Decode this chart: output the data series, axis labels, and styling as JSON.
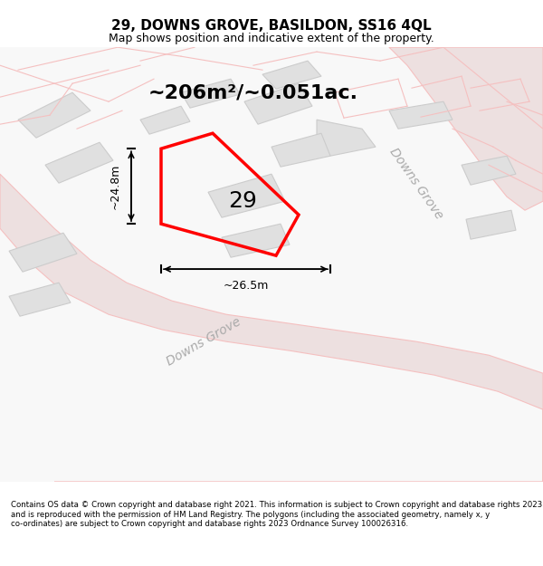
{
  "title": "29, DOWNS GROVE, BASILDON, SS16 4QL",
  "subtitle": "Map shows position and indicative extent of the property.",
  "area_text": "~206m²/~0.051ac.",
  "label_29": "29",
  "dim_height": "~24.8m",
  "dim_width": "~26.5m",
  "street_label1": "Downs Grove",
  "street_label2": "Downs Grove",
  "footer": "Contains OS data © Crown copyright and database right 2021. This information is subject to Crown copyright and database rights 2023 and is reproduced with the permission of HM Land Registry. The polygons (including the associated geometry, namely x, y co-ordinates) are subject to Crown copyright and database rights 2023 Ordnance Survey 100026316.",
  "bg_color": "#ffffff",
  "map_bg": "#f5f5f5",
  "plot_color": "#ff0000",
  "road_color": "#f5c0c0",
  "building_color": "#e0e0e0",
  "building_edge": "#cccccc",
  "road_fill": "#f0e8e8"
}
